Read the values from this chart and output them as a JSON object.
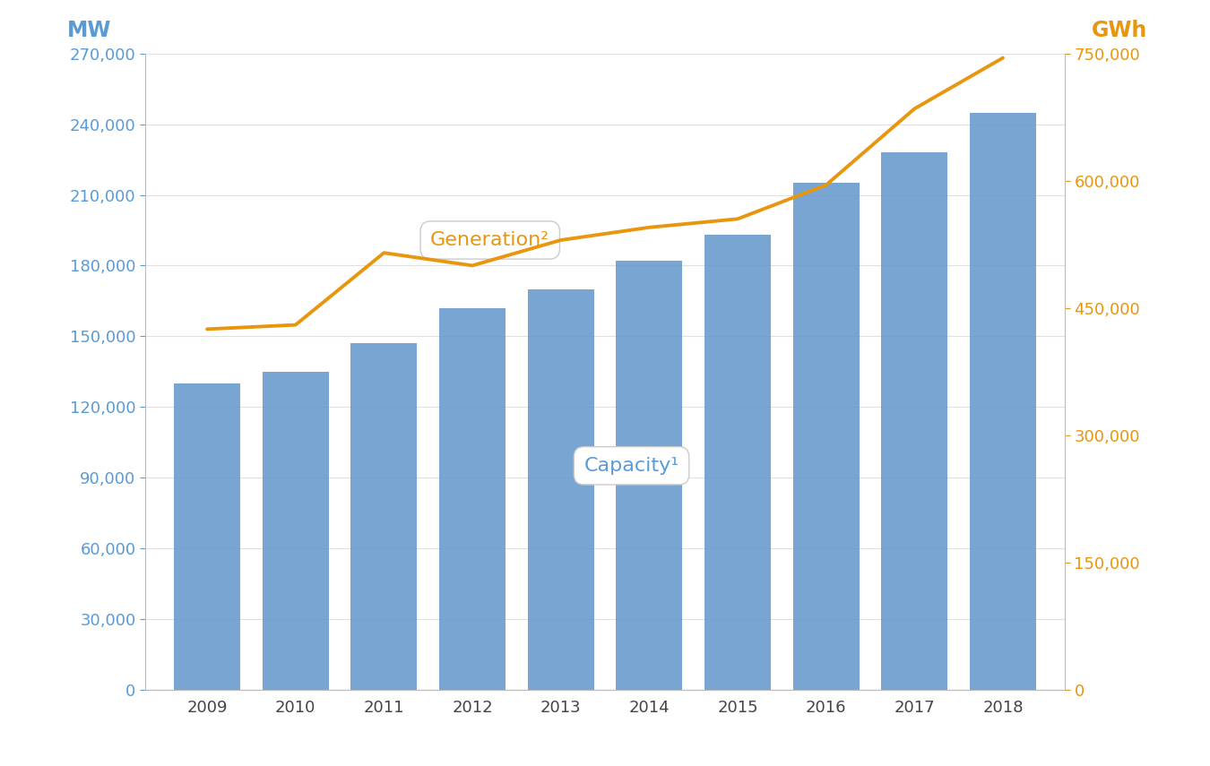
{
  "years": [
    2009,
    2010,
    2011,
    2012,
    2013,
    2014,
    2015,
    2016,
    2017,
    2018
  ],
  "capacity_mw": [
    130000,
    135000,
    147000,
    162000,
    170000,
    182000,
    193000,
    215000,
    228000,
    245000
  ],
  "generation_gwh": [
    425000,
    430000,
    515000,
    500000,
    530000,
    545000,
    555000,
    595000,
    685000,
    745000
  ],
  "bar_color": "#6699cc",
  "line_color": "#e8960e",
  "left_axis_color": "#5b9bd5",
  "right_axis_color": "#e8960e",
  "left_ylabel": "MW",
  "right_ylabel": "GWh",
  "left_ylim": [
    0,
    270000
  ],
  "right_ylim": [
    0,
    750000
  ],
  "left_yticks": [
    0,
    30000,
    60000,
    90000,
    120000,
    150000,
    180000,
    210000,
    240000,
    270000
  ],
  "right_yticks": [
    0,
    150000,
    300000,
    450000,
    600000,
    750000
  ],
  "bg_color": "#ffffff",
  "capacity_label": "Capacity¹",
  "generation_label": "Generation²",
  "capacity_label_color": "#5b9bd5",
  "generation_label_color": "#e8960e"
}
